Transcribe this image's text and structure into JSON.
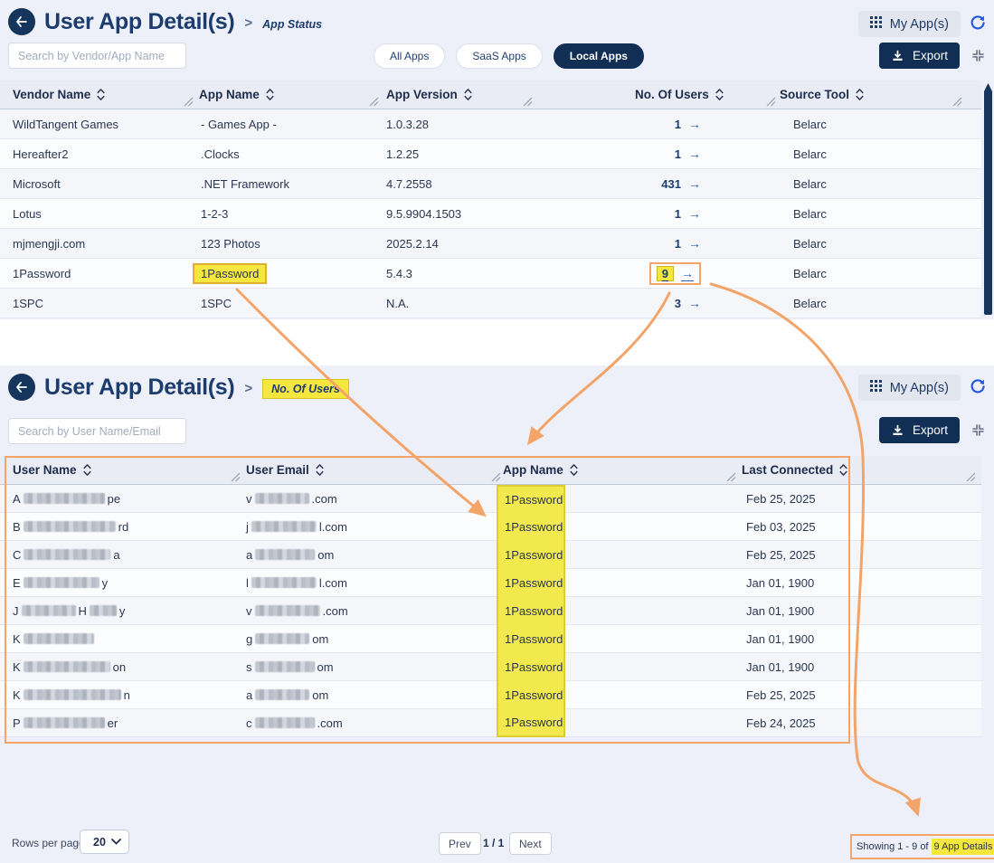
{
  "colors": {
    "navy": "#112e54",
    "title_navy": "#1d3c6e",
    "highlight_yellow": "#f6e73f",
    "annotation_orange": "#f3a469",
    "link_blue": "#2456e0"
  },
  "top_panel": {
    "title": "User App Detail(s)",
    "breadcrumb_separator": ">",
    "breadcrumb": "App Status",
    "my_apps_label": "My App(s)",
    "search_placeholder": "Search by Vendor/App Name",
    "filters": [
      "All Apps",
      "SaaS Apps",
      "Local Apps"
    ],
    "active_filter": "Local Apps",
    "export_label": "Export",
    "columns": [
      "Vendor Name",
      "App Name",
      "App Version",
      "No. Of Users",
      "Source Tool"
    ],
    "rows": [
      {
        "vendor": "WildTangent Games",
        "app": "- Games App -",
        "version": "1.0.3.28",
        "users": "1",
        "source": "Belarc"
      },
      {
        "vendor": "Hereafter2",
        "app": ".Clocks",
        "version": "1.2.25",
        "users": "1",
        "source": "Belarc"
      },
      {
        "vendor": "Microsoft",
        "app": ".NET Framework",
        "version": "4.7.2558",
        "users": "431",
        "source": "Belarc"
      },
      {
        "vendor": "Lotus",
        "app": "1-2-3",
        "version": "9.5.9904.1503",
        "users": "1",
        "source": "Belarc"
      },
      {
        "vendor": "mjmengji.com",
        "app": "123 Photos",
        "version": "2025.2.14",
        "users": "1",
        "source": "Belarc"
      },
      {
        "vendor": "1Password",
        "app": "1Password",
        "version": "5.4.3",
        "users": "9",
        "source": "Belarc",
        "highlighted": true
      },
      {
        "vendor": "1SPC",
        "app": "1SPC",
        "version": "N.A.",
        "users": "3",
        "source": "Belarc"
      }
    ]
  },
  "bottom_panel": {
    "title": "User App Detail(s)",
    "breadcrumb_separator": ">",
    "breadcrumb": "No. Of Users",
    "my_apps_label": "My App(s)",
    "search_placeholder": "Search by User Name/Email",
    "export_label": "Export",
    "columns": [
      "User Name",
      "User Email",
      "App Name",
      "Last Connected"
    ],
    "rows": [
      {
        "name": [
          {
            "t": "A"
          },
          {
            "m": 15
          },
          {
            "t": "pe"
          }
        ],
        "email": [
          {
            "t": "v"
          },
          {
            "m": 10
          },
          {
            "t": ".com"
          }
        ],
        "app": "1Password",
        "last_connected": "Feb 25, 2025"
      },
      {
        "name": [
          {
            "t": "B"
          },
          {
            "m": 17
          },
          {
            "t": "rd"
          }
        ],
        "email": [
          {
            "t": "j"
          },
          {
            "m": 12
          },
          {
            "t": "l.com"
          }
        ],
        "app": "1Password",
        "last_connected": "Feb 03, 2025"
      },
      {
        "name": [
          {
            "t": "C"
          },
          {
            "m": 16
          },
          {
            "t": "a"
          }
        ],
        "email": [
          {
            "t": "a"
          },
          {
            "m": 11
          },
          {
            "t": "om"
          }
        ],
        "app": "1Password",
        "last_connected": "Feb 25, 2025"
      },
      {
        "name": [
          {
            "t": "E"
          },
          {
            "m": 14
          },
          {
            "t": "y"
          }
        ],
        "email": [
          {
            "t": "l"
          },
          {
            "m": 12
          },
          {
            "t": "l.com"
          }
        ],
        "app": "1Password",
        "last_connected": "Jan 01, 1900"
      },
      {
        "name": [
          {
            "t": "J"
          },
          {
            "m": 10
          },
          {
            "t": "H"
          },
          {
            "m": 5
          },
          {
            "t": "y"
          }
        ],
        "email": [
          {
            "t": "v"
          },
          {
            "m": 12
          },
          {
            "t": ".com"
          }
        ],
        "app": "1Password",
        "last_connected": "Jan 01, 1900"
      },
      {
        "name": [
          {
            "t": "K"
          },
          {
            "m": 13
          }
        ],
        "email": [
          {
            "t": "g"
          },
          {
            "m": 10
          },
          {
            "t": "om"
          }
        ],
        "app": "1Password",
        "last_connected": "Jan 01, 1900"
      },
      {
        "name": [
          {
            "t": "K"
          },
          {
            "m": 16
          },
          {
            "t": "on"
          }
        ],
        "email": [
          {
            "t": "s"
          },
          {
            "m": 11
          },
          {
            "t": "om"
          }
        ],
        "app": "1Password",
        "last_connected": "Jan 01, 1900"
      },
      {
        "name": [
          {
            "t": "K"
          },
          {
            "m": 18
          },
          {
            "t": "n"
          }
        ],
        "email": [
          {
            "t": "a"
          },
          {
            "m": 10
          },
          {
            "t": "om"
          }
        ],
        "app": "1Password",
        "last_connected": "Feb 25, 2025"
      },
      {
        "name": [
          {
            "t": "P"
          },
          {
            "m": 15
          },
          {
            "t": "er"
          }
        ],
        "email": [
          {
            "t": "c"
          },
          {
            "m": 11
          },
          {
            "t": ".com"
          }
        ],
        "app": "1Password",
        "last_connected": "Feb 24, 2025"
      }
    ]
  },
  "pagination": {
    "rows_per_page_label": "Rows per page:",
    "rows_per_page_value": "20",
    "prev_label": "Prev",
    "page_indicator": "1 / 1",
    "next_label": "Next",
    "showing_prefix": "Showing 1 - 9 of",
    "showing_highlight": "9 App Details"
  }
}
